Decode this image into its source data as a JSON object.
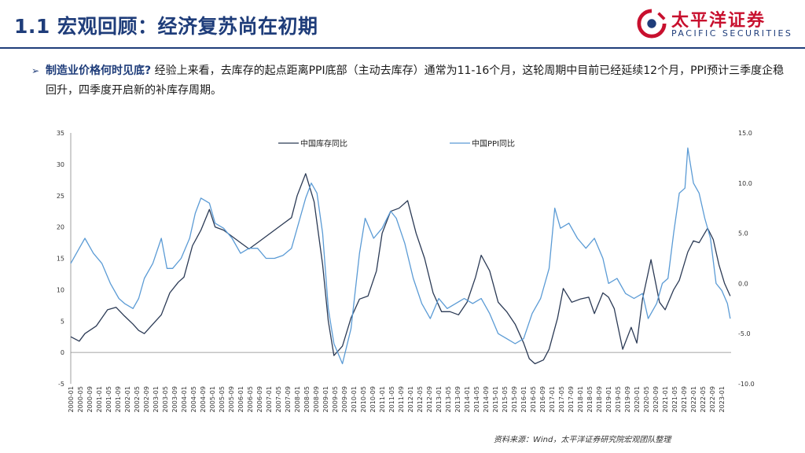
{
  "header": {
    "title": "1.1 宏观回顾：经济复苏尚在初期",
    "logo_cn": "太平洋证券",
    "logo_en": "PACIFIC SECURITIES"
  },
  "bullet": {
    "question": "制造业价格何时见底?",
    "body": "经验上来看，去库存的起点距离PPI底部（主动去库存）通常为11-16个月，这轮周期中目前已经延续12个月，PPI预计三季度企稳回升，四季度开启新的补库存周期。"
  },
  "source": "资料来源：Wind，太平洋证券研究院宏观团队整理",
  "colors": {
    "title": "#1f3d7a",
    "brand_red": "#c8102e",
    "inventory": "#2b3a55",
    "ppi": "#5b9bd5"
  },
  "chart_data": {
    "type": "line",
    "title": "",
    "ylim_left": [
      -5,
      35
    ],
    "yticks_left": [
      "35",
      "30",
      "25",
      "20",
      "15",
      "10",
      "5",
      "0",
      "-5"
    ],
    "ylim_right": [
      -10,
      15
    ],
    "yticks_right": [
      "15.0",
      "10.0",
      "5.0",
      "0.0",
      "-5.0",
      "-10.0"
    ],
    "xticks": [
      "2000-01",
      "2000-05",
      "2000-09",
      "2001-01",
      "2001-05",
      "2001-09",
      "2002-01",
      "2002-05",
      "2002-09",
      "2003-01",
      "2003-05",
      "2003-09",
      "2004-01",
      "2004-05",
      "2004-09",
      "2005-01",
      "2005-05",
      "2005-09",
      "2006-01",
      "2006-05",
      "2006-09",
      "2007-01",
      "2007-05",
      "2007-09",
      "2008-01",
      "2008-05",
      "2008-09",
      "2009-01",
      "2009-05",
      "2009-09",
      "2010-01",
      "2010-05",
      "2010-09",
      "2011-01",
      "2011-05",
      "2011-09",
      "2012-01",
      "2012-05",
      "2012-09",
      "2013-01",
      "2013-05",
      "2013-09",
      "2014-01",
      "2014-05",
      "2014-09",
      "2015-01",
      "2015-05",
      "2015-09",
      "2016-01",
      "2016-05",
      "2016-09",
      "2017-01",
      "2017-05",
      "2017-09",
      "2018-01",
      "2018-05",
      "2018-09",
      "2019-01",
      "2019-05",
      "2019-09",
      "2020-01",
      "2020-05",
      "2020-09",
      "2021-01",
      "2021-05",
      "2021-09",
      "2022-01",
      "2022-05",
      "2022-09",
      "2023-01"
    ],
    "series": [
      {
        "name": "中国库存同比",
        "axis": "left",
        "color": "#2b3a55",
        "x": [
          2000.0,
          2000.3,
          2000.5,
          2000.9,
          2001.3,
          2001.6,
          2001.9,
          2002.2,
          2002.4,
          2002.6,
          2002.9,
          2003.2,
          2003.5,
          2003.8,
          2004.0,
          2004.3,
          2004.6,
          2004.9,
          2005.1,
          2005.4,
          2005.7,
          2006.0,
          2006.3,
          2006.6,
          2006.9,
          2007.2,
          2007.5,
          2007.8,
          2008.0,
          2008.3,
          2008.6,
          2008.9,
          2009.1,
          2009.3,
          2009.6,
          2009.9,
          2010.2,
          2010.5,
          2010.8,
          2011.0,
          2011.3,
          2011.6,
          2011.9,
          2012.2,
          2012.5,
          2012.8,
          2013.1,
          2013.4,
          2013.7,
          2014.0,
          2014.3,
          2014.5,
          2014.8,
          2015.1,
          2015.4,
          2015.7,
          2016.0,
          2016.2,
          2016.4,
          2016.7,
          2016.9,
          2017.2,
          2017.4,
          2017.7,
          2018.0,
          2018.3,
          2018.5,
          2018.8,
          2019.0,
          2019.2,
          2019.5,
          2019.8,
          2020.0,
          2020.2,
          2020.5,
          2020.8,
          2021.0,
          2021.3,
          2021.5,
          2021.8,
          2022.0,
          2022.2,
          2022.5,
          2022.7,
          2022.9,
          2023.1,
          2023.3
        ],
        "values": [
          2.5,
          1.8,
          3.0,
          4.2,
          6.8,
          7.2,
          5.8,
          4.5,
          3.5,
          3.0,
          4.5,
          6.0,
          9.5,
          11.2,
          12.0,
          17.0,
          19.5,
          22.8,
          20.0,
          19.5,
          18.5,
          17.5,
          16.5,
          17.5,
          18.5,
          19.5,
          20.5,
          21.5,
          25.0,
          28.5,
          24.0,
          14.0,
          5.0,
          -0.5,
          1.0,
          5.5,
          8.5,
          9.0,
          13.0,
          19.0,
          22.5,
          23.0,
          24.2,
          19.0,
          15.0,
          9.5,
          6.5,
          6.5,
          6.0,
          8.0,
          12.0,
          15.5,
          13.0,
          8.0,
          6.5,
          4.5,
          1.5,
          -1.0,
          -1.8,
          -1.2,
          0.5,
          5.5,
          10.2,
          8.0,
          8.5,
          8.8,
          6.2,
          9.5,
          8.8,
          7.0,
          0.5,
          4.0,
          1.5,
          8.5,
          14.8,
          8.0,
          6.8,
          10.0,
          11.5,
          16.0,
          17.8,
          17.5,
          19.8,
          18.0,
          14.0,
          11.0,
          9.0
        ]
      },
      {
        "name": "中国PPI同比",
        "axis": "right",
        "color": "#5b9bd5",
        "x": [
          2000.0,
          2000.3,
          2000.5,
          2000.8,
          2001.1,
          2001.4,
          2001.7,
          2001.9,
          2002.2,
          2002.4,
          2002.6,
          2002.9,
          2003.2,
          2003.4,
          2003.6,
          2003.9,
          2004.2,
          2004.4,
          2004.6,
          2004.9,
          2005.1,
          2005.4,
          2005.7,
          2006.0,
          2006.3,
          2006.6,
          2006.9,
          2007.2,
          2007.5,
          2007.8,
          2008.1,
          2008.3,
          2008.5,
          2008.7,
          2008.9,
          2009.1,
          2009.3,
          2009.6,
          2009.9,
          2010.2,
          2010.4,
          2010.7,
          2011.0,
          2011.3,
          2011.5,
          2011.8,
          2012.1,
          2012.4,
          2012.7,
          2013.0,
          2013.3,
          2013.6,
          2013.9,
          2014.2,
          2014.5,
          2014.8,
          2015.1,
          2015.4,
          2015.7,
          2016.0,
          2016.3,
          2016.6,
          2016.9,
          2017.1,
          2017.3,
          2017.6,
          2017.9,
          2018.2,
          2018.5,
          2018.8,
          2019.0,
          2019.3,
          2019.6,
          2019.9,
          2020.2,
          2020.4,
          2020.7,
          2020.9,
          2021.1,
          2021.3,
          2021.5,
          2021.7,
          2021.8,
          2022.0,
          2022.2,
          2022.4,
          2022.6,
          2022.8,
          2023.0,
          2023.2,
          2023.3
        ],
        "values": [
          2.0,
          3.5,
          4.5,
          3.0,
          2.0,
          0.0,
          -1.5,
          -2.0,
          -2.5,
          -1.5,
          0.5,
          2.0,
          4.5,
          1.5,
          1.5,
          2.5,
          4.5,
          7.0,
          8.5,
          8.0,
          6.0,
          5.5,
          4.5,
          3.0,
          3.5,
          3.5,
          2.5,
          2.5,
          2.8,
          3.5,
          6.5,
          8.5,
          10.0,
          9.0,
          5.0,
          -2.5,
          -6.0,
          -8.0,
          -4.5,
          3.0,
          6.5,
          4.5,
          5.5,
          7.2,
          6.5,
          4.0,
          0.5,
          -2.0,
          -3.5,
          -1.5,
          -2.5,
          -2.0,
          -1.5,
          -2.0,
          -1.5,
          -3.0,
          -5.0,
          -5.5,
          -6.0,
          -5.5,
          -3.0,
          -1.5,
          1.5,
          7.5,
          5.5,
          6.0,
          4.5,
          3.5,
          4.5,
          2.5,
          0.0,
          0.5,
          -1.0,
          -1.5,
          -1.0,
          -3.5,
          -2.0,
          0.0,
          0.5,
          5.0,
          9.0,
          9.5,
          13.5,
          10.0,
          9.0,
          6.5,
          4.5,
          0.0,
          -0.7,
          -2.0,
          -3.5
        ]
      }
    ]
  }
}
